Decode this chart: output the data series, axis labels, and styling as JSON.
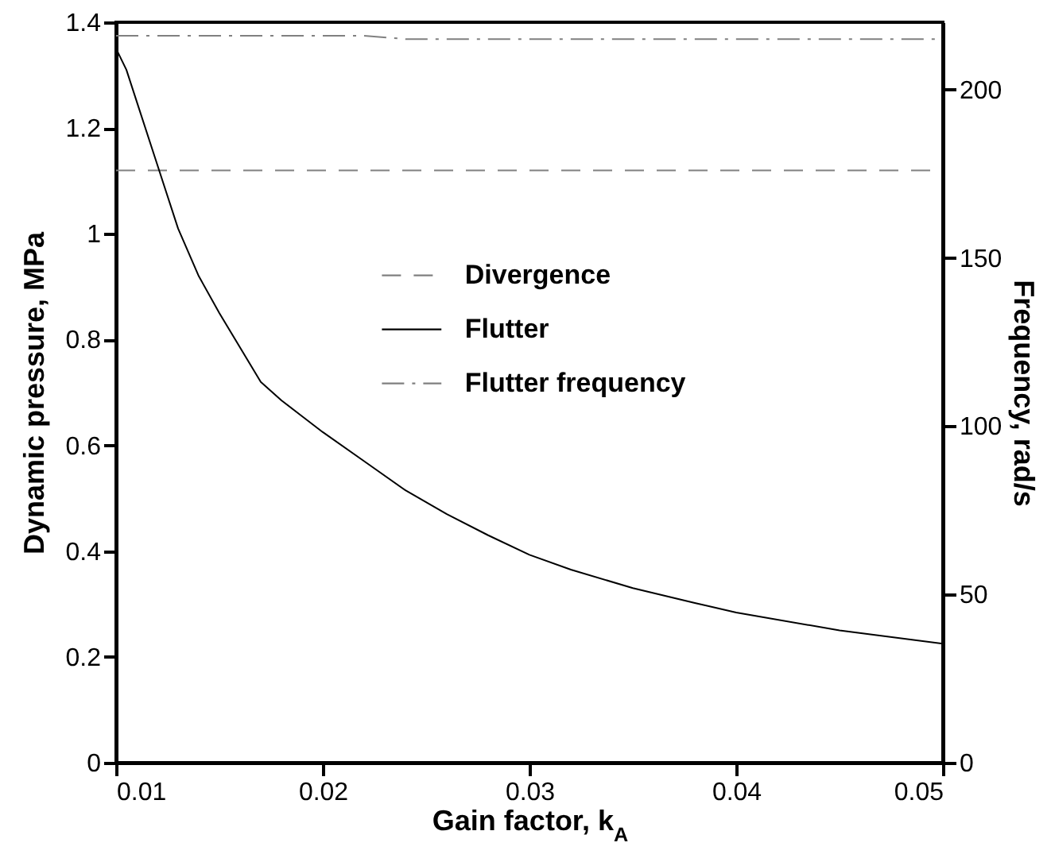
{
  "chart_data": {
    "type": "line",
    "xlabel": "Gain factor, k$_{A}$",
    "ylabel": "Dynamic pressure, MPa",
    "y2label": "Frequency, rad/s",
    "xlim": [
      0.01,
      0.05
    ],
    "xticks": [
      0.01,
      0.02,
      0.03,
      0.04,
      0.05
    ],
    "ylim": [
      0,
      1.4
    ],
    "yticks": [
      0,
      0.2,
      0.4,
      0.6,
      0.8,
      1,
      1.2,
      1.4
    ],
    "y2lim": [
      0,
      220
    ],
    "y2ticks": [
      0,
      50,
      100,
      150,
      200
    ],
    "legend": "center",
    "grid": false,
    "series": [
      {
        "name": "Divergence",
        "color": "#808080",
        "line_style": "dashed",
        "x": [
          0.01,
          0.05
        ],
        "values": [
          1.12,
          1.12
        ]
      },
      {
        "name": "Flutter",
        "color": "#000000",
        "line_style": "solid",
        "x": [
          0.01,
          0.0105,
          0.011,
          0.012,
          0.013,
          0.014,
          0.015,
          0.016,
          0.017,
          0.018,
          0.019,
          0.02,
          0.022,
          0.024,
          0.026,
          0.028,
          0.03,
          0.032,
          0.035,
          0.038,
          0.04,
          0.045,
          0.05
        ],
        "values": [
          1.35,
          1.31,
          1.25,
          1.13,
          1.01,
          0.92,
          0.85,
          0.785,
          0.72,
          0.685,
          0.655,
          0.625,
          0.57,
          0.515,
          0.47,
          0.43,
          0.393,
          0.365,
          0.33,
          0.302,
          0.284,
          0.25,
          0.225
        ]
      },
      {
        "name": "Flutter frequency",
        "color": "#808080",
        "line_style": "dashdot",
        "axis": "y2",
        "x": [
          0.01,
          0.022,
          0.024,
          0.05
        ],
        "values": [
          216,
          216,
          215,
          215
        ]
      }
    ]
  }
}
